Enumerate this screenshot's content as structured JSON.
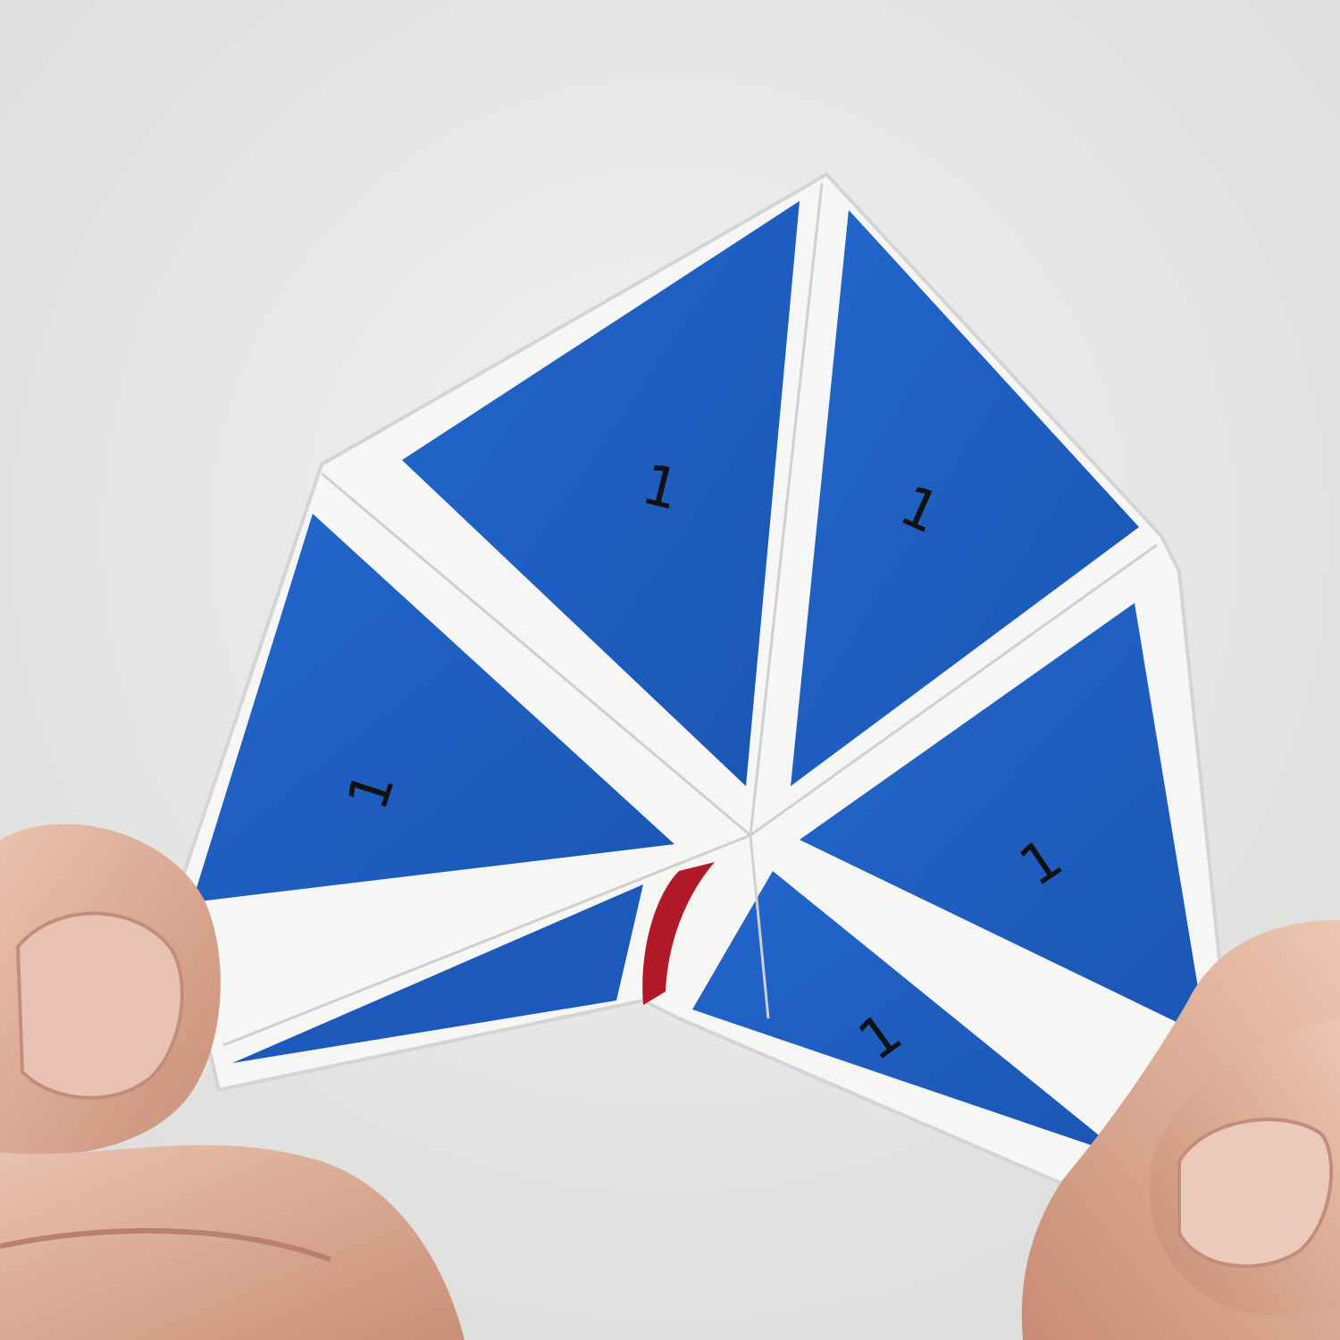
{
  "photo": {
    "colors": {
      "background": "#e9e9e7",
      "paper": "#f7f7f5",
      "face_blue": "#1f5fc4",
      "face_blue_dark": "#164ea6",
      "inner_red": "#b01a28",
      "skin": "#e2b6a0",
      "skin_shadow": "#c98f78"
    },
    "faces": [
      {
        "label": "1"
      },
      {
        "label": "1"
      },
      {
        "label": "1"
      },
      {
        "label": "1"
      },
      {
        "label": "1"
      }
    ]
  }
}
